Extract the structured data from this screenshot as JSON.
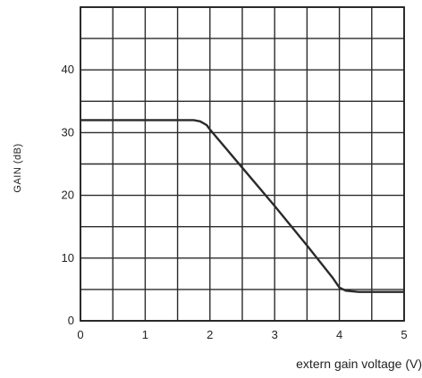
{
  "chart_data": {
    "type": "line",
    "title": "",
    "xlabel": "extern gain voltage (V)",
    "ylabel": "GAIN (dB)",
    "xlim": [
      0,
      5
    ],
    "ylim": [
      0,
      50
    ],
    "x_ticks": [
      0,
      1,
      2,
      3,
      4,
      5
    ],
    "x_tick_labels": [
      "0",
      "1",
      "2",
      "3",
      "4",
      "5"
    ],
    "y_ticks": [
      0,
      10,
      20,
      30,
      40
    ],
    "y_tick_labels": [
      "0",
      "10",
      "20",
      "30",
      "40"
    ],
    "grid": true,
    "grid_x_step": 0.5,
    "grid_y_step": 5,
    "series": [
      {
        "x": [
          0.0,
          0.5,
          1.0,
          1.5,
          1.75,
          1.85,
          1.95,
          2.0,
          2.5,
          3.0,
          3.5,
          3.9,
          4.0,
          4.1,
          4.3,
          4.6,
          5.0
        ],
        "y": [
          32,
          32,
          32,
          32,
          32,
          31.8,
          31.2,
          30.5,
          24.4,
          18.3,
          12.0,
          6.8,
          5.3,
          4.8,
          4.6,
          4.6,
          4.6
        ],
        "color": "#2a2a2a"
      }
    ]
  }
}
